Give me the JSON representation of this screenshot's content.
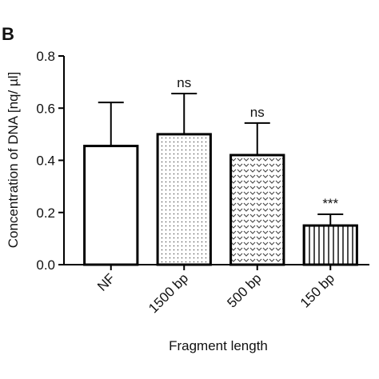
{
  "chart_data": {
    "type": "bar",
    "panel_label": "B",
    "ylabel": "Concentration of DNA [nq/ µl]",
    "xlabel": "Fragment length",
    "categories": [
      "NF",
      "1500 bp",
      "500 bp",
      "150 bp"
    ],
    "values": [
      0.455,
      0.5,
      0.42,
      0.15
    ],
    "errors": [
      0.167,
      0.156,
      0.123,
      0.043
    ],
    "annotations": [
      null,
      "ns",
      "ns",
      "***"
    ],
    "patterns": [
      "none",
      "dots",
      "chevrons",
      "vertical-lines"
    ],
    "color": "#000000",
    "ylim": [
      0,
      0.8
    ],
    "yticks": [
      {
        "value": 0,
        "label": "0.0"
      },
      0.2,
      0.4,
      0.6,
      0.8
    ]
  }
}
